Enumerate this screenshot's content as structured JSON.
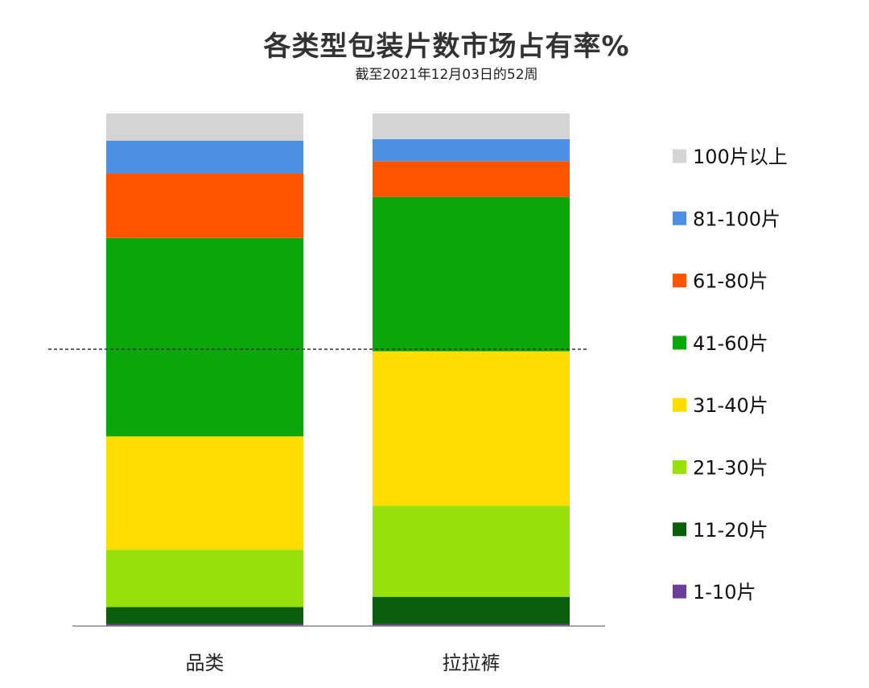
{
  "chart_data": {
    "type": "bar",
    "stacked": true,
    "normalized": true,
    "title": "各类型包装片数市场占有率%",
    "subtitle": "截至2021年12月03日的52周",
    "categories": [
      "品类",
      "拉拉裤"
    ],
    "series": [
      {
        "name": "1-10片",
        "color": "#6a3d9a",
        "values": [
          0.4,
          0.4
        ]
      },
      {
        "name": "11-20片",
        "color": "#0b5e0b",
        "values": [
          3.3,
          5.3
        ]
      },
      {
        "name": "21-30片",
        "color": "#99e10c",
        "values": [
          11.2,
          17.8
        ]
      },
      {
        "name": "31-40片",
        "color": "#ffdd00",
        "values": [
          22.1,
          30.1
        ]
      },
      {
        "name": "41-60片",
        "color": "#0aa60a",
        "values": [
          38.7,
          30.1
        ]
      },
      {
        "name": "61-80片",
        "color": "#ff5500",
        "values": [
          12.6,
          7.0
        ]
      },
      {
        "name": "81-100片",
        "color": "#4d8fe3",
        "values": [
          6.4,
          4.3
        ]
      },
      {
        "name": "100片以上",
        "color": "#d4d4d4",
        "values": [
          5.3,
          5.0
        ]
      }
    ],
    "legend_position": "right",
    "legend_order": "top-down reversed (100片以上 first)",
    "reference_line": {
      "style": "dashed",
      "color": "#333333"
    },
    "ylim": [
      0,
      100
    ],
    "grid": false
  }
}
